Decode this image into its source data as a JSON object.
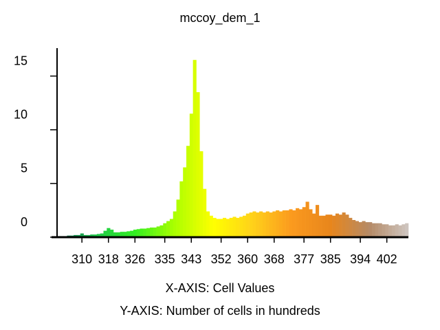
{
  "chart_data": {
    "type": "histogram",
    "title": "mccoy_dem_1",
    "xlabel": "X-AXIS: Cell Values",
    "ylabel": "Y-AXIS: Number of cells in hundreds",
    "bins": [
      302.5,
      303.5,
      304.5,
      305.5,
      306.5,
      307.5,
      308.5,
      309.5,
      310.5,
      311.5,
      312.5,
      313.5,
      314.5,
      315.5,
      316.5,
      317.5,
      318.5,
      319.5,
      320.5,
      321.5,
      322.5,
      323.5,
      324.5,
      325.5,
      326.5,
      327.5,
      328.5,
      329.5,
      330.5,
      331.5,
      332.5,
      333.5,
      334.5,
      335.5,
      336.5,
      337.5,
      338.5,
      339.5,
      340.5,
      341.5,
      342.5,
      343.5,
      344.5,
      345.5,
      346.5,
      347.5,
      348.5,
      349.5,
      350.5,
      351.5,
      352.5,
      353.5,
      354.5,
      355.5,
      356.5,
      357.5,
      358.5,
      359.5,
      360.5,
      361.5,
      362.5,
      363.5,
      364.5,
      365.5,
      366.5,
      367.5,
      368.5,
      369.5,
      370.5,
      371.5,
      372.5,
      373.5,
      374.5,
      375.5,
      376.5,
      377.5,
      378.5,
      379.5,
      380.5,
      381.5,
      382.5,
      383.5,
      384.5,
      385.5,
      386.5,
      387.5,
      388.5,
      389.5,
      390.5,
      391.5,
      392.5,
      393.5,
      394.5,
      395.5,
      396.5,
      397.5,
      398.5,
      399.5,
      400.5,
      401.5,
      402.5,
      403.5,
      404.5,
      405.5,
      406.5,
      407.5,
      408.5
    ],
    "values": [
      0.1,
      0.1,
      0.1,
      0.15,
      0.15,
      0.2,
      0.2,
      0.35,
      0.2,
      0.2,
      0.25,
      0.25,
      0.3,
      0.35,
      0.6,
      0.85,
      0.7,
      0.45,
      0.45,
      0.5,
      0.5,
      0.55,
      0.6,
      0.7,
      0.75,
      0.8,
      0.8,
      0.85,
      0.9,
      0.9,
      1.0,
      1.1,
      1.3,
      1.5,
      1.7,
      2.4,
      3.5,
      5.2,
      6.5,
      8.5,
      11.5,
      16.5,
      13.5,
      8.0,
      4.5,
      2.4,
      2.0,
      1.8,
      1.7,
      1.7,
      1.8,
      1.7,
      1.8,
      1.9,
      1.8,
      1.9,
      2.0,
      2.2,
      2.3,
      2.4,
      2.3,
      2.4,
      2.3,
      2.4,
      2.3,
      2.4,
      2.5,
      2.4,
      2.5,
      2.5,
      2.6,
      2.5,
      2.7,
      2.6,
      2.8,
      3.3,
      2.6,
      2.2,
      3.0,
      2.0,
      2.0,
      2.1,
      2.1,
      2.0,
      2.2,
      2.1,
      2.3,
      2.1,
      1.8,
      1.6,
      1.5,
      1.4,
      1.5,
      1.4,
      1.4,
      1.3,
      1.3,
      1.3,
      1.2,
      1.2,
      1.1,
      1.1,
      1.2,
      1.1,
      1.2,
      1.3
    ],
    "colors": [
      "#0b5e52",
      "#1fc94a",
      "#33ee22",
      "#aaff00",
      "#ffff00",
      "#ffd21a",
      "#fb9a1e",
      "#e8861c",
      "#b58a66",
      "#cfc7c2"
    ],
    "xlim": [
      302.5,
      408.5
    ],
    "ylim": [
      0,
      17.6
    ],
    "xticks": [
      310,
      318,
      326,
      335,
      343,
      352,
      360,
      368,
      377,
      385,
      394,
      402
    ],
    "yticks": [
      0,
      5,
      10,
      15
    ]
  }
}
